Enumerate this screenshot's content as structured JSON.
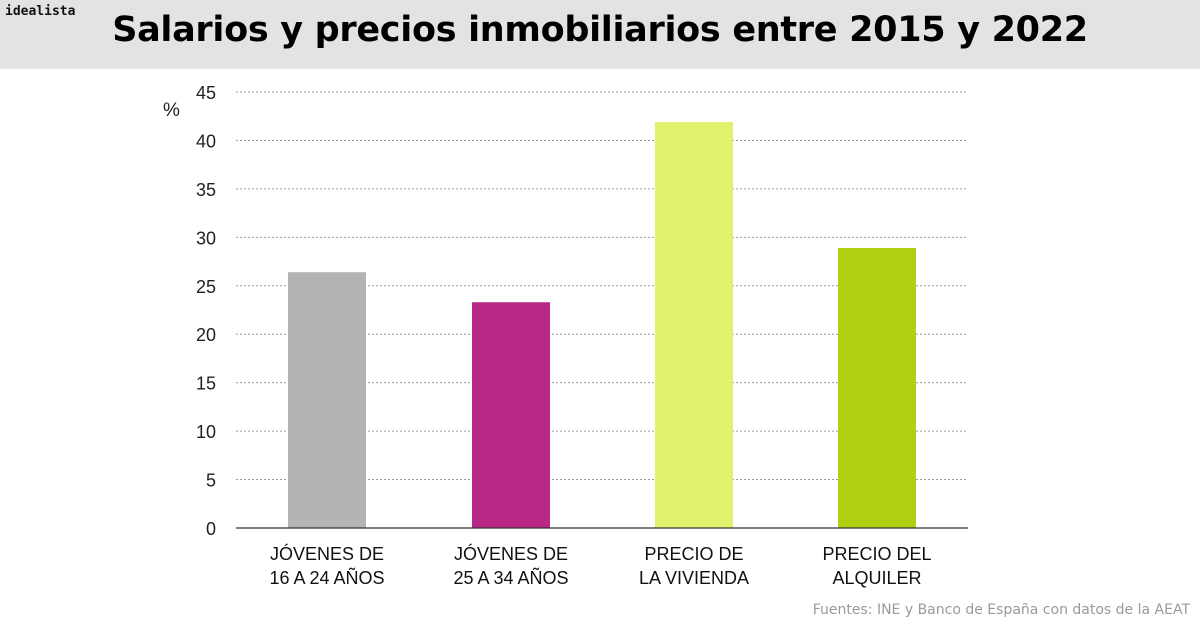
{
  "brand": "idealista",
  "title": "Salarios y precios inmobiliarios entre 2015 y 2022",
  "source": "Fuentes: INE y Banco de España con datos de la AEAT",
  "chart_data": {
    "type": "bar",
    "title": "Salarios y precios inmobiliarios entre 2015 y 2022",
    "xlabel": "",
    "ylabel": "%",
    "ylim": [
      0,
      45
    ],
    "yticks": [
      0,
      5,
      10,
      15,
      20,
      25,
      30,
      35,
      40,
      45
    ],
    "grid": true,
    "categories": [
      [
        "JÓVENES DE",
        "16 A 24 AÑOS"
      ],
      [
        "JÓVENES DE",
        "25 A 34 AÑOS"
      ],
      [
        "PRECIO DE",
        "LA VIVIENDA"
      ],
      [
        "PRECIO DEL",
        "ALQUILER"
      ]
    ],
    "values": [
      26.4,
      23.3,
      41.9,
      28.9
    ],
    "colors": [
      "#b5b4b2",
      "#b82783",
      "#e0f26e",
      "#b2cf12"
    ]
  }
}
